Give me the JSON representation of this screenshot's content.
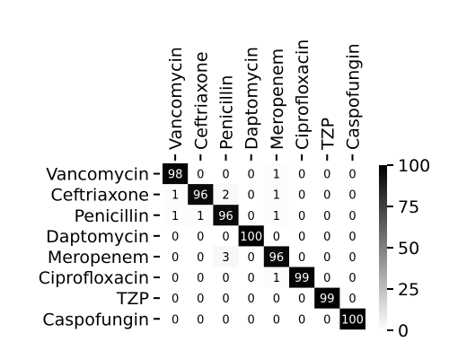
{
  "chart_data": {
    "type": "heatmap",
    "title": "",
    "xlabel": "",
    "ylabel": "",
    "x_tick_position": "top",
    "x_tick_rotation": 90,
    "row_labels": [
      "Vancomycin",
      "Ceftriaxone",
      "Penicillin",
      "Daptomycin",
      "Meropenem",
      "Ciprofloxacin",
      "TZP",
      "Caspofungin"
    ],
    "col_labels": [
      "Vancomycin",
      "Ceftriaxone",
      "Penicillin",
      "Daptomycin",
      "Meropenem",
      "Ciprofloxacin",
      "TZP",
      "Caspofungin"
    ],
    "values": [
      [
        98,
        0,
        0,
        0,
        1,
        0,
        0,
        0
      ],
      [
        1,
        96,
        2,
        0,
        1,
        0,
        0,
        0
      ],
      [
        1,
        1,
        96,
        0,
        1,
        0,
        0,
        0
      ],
      [
        0,
        0,
        0,
        100,
        0,
        0,
        0,
        0
      ],
      [
        0,
        0,
        3,
        0,
        96,
        0,
        0,
        0
      ],
      [
        0,
        0,
        0,
        0,
        1,
        99,
        0,
        0
      ],
      [
        0,
        0,
        0,
        0,
        0,
        0,
        99,
        0
      ],
      [
        0,
        0,
        0,
        0,
        0,
        0,
        0,
        100
      ]
    ],
    "colormap": "white-to-black",
    "colorbar": {
      "range": [
        0,
        100
      ],
      "ticks": [
        0,
        25,
        50,
        75,
        100
      ]
    },
    "grid": false
  }
}
